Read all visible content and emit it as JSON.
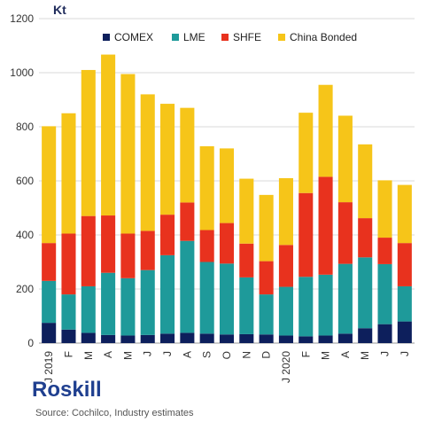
{
  "chart_data": {
    "type": "bar",
    "stacked": true,
    "unit_label": "Kt",
    "categories": [
      "J 2019",
      "F",
      "M",
      "A",
      "M",
      "J",
      "J",
      "A",
      "S",
      "O",
      "N",
      "D",
      "J 2020",
      "F",
      "M",
      "A",
      "M",
      "J",
      "J"
    ],
    "series": [
      {
        "name": "COMEX",
        "color": "#0d1f5c",
        "values": [
          75,
          50,
          38,
          30,
          28,
          30,
          35,
          38,
          35,
          32,
          33,
          32,
          28,
          25,
          28,
          35,
          55,
          70,
          80
        ]
      },
      {
        "name": "LME",
        "color": "#1e9a9a",
        "values": [
          155,
          130,
          172,
          230,
          212,
          240,
          290,
          340,
          265,
          262,
          210,
          148,
          180,
          220,
          225,
          258,
          262,
          222,
          130
        ]
      },
      {
        "name": "SHFE",
        "color": "#e8321e",
        "values": [
          140,
          225,
          260,
          212,
          165,
          145,
          150,
          142,
          118,
          150,
          125,
          123,
          155,
          310,
          362,
          228,
          145,
          98,
          160
        ]
      },
      {
        "name": "China Bonded",
        "color": "#f6c519",
        "values": [
          432,
          445,
          540,
          595,
          590,
          505,
          410,
          350,
          310,
          276,
          240,
          245,
          247,
          297,
          340,
          320,
          273,
          212,
          215
        ]
      }
    ],
    "ylim": [
      0,
      1200
    ],
    "yticks": [
      0,
      200,
      400,
      600,
      800,
      1000,
      1200
    ],
    "grid": true,
    "legend": "top"
  },
  "footer": {
    "brand": "Roskill",
    "source": "Source: Cochilco, Industry estimates"
  }
}
